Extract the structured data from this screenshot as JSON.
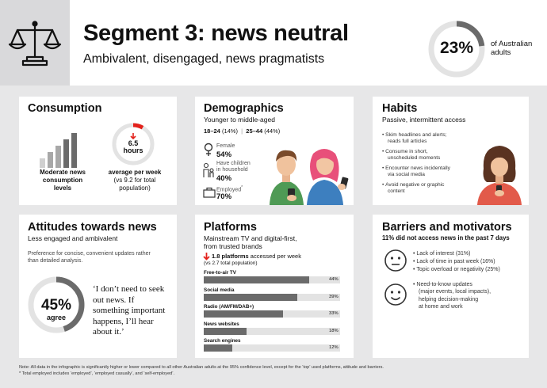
{
  "header": {
    "title": "Segment 3: news neutral",
    "subtitle": "Ambivalent, disengaged, news pragmatists",
    "share_value": "23%",
    "share_fraction": 0.23,
    "share_label_line1": "of Australian",
    "share_label_line2": "adults",
    "icon": "scales-icon"
  },
  "consumption": {
    "title": "Consumption",
    "level_label_line1": "Moderate news",
    "level_label_line2": "consumption",
    "level_label_line3": "levels",
    "hours_value": "6.5",
    "hours_unit": "hours",
    "hours_caption": "average per week",
    "hours_compare_line1": "(vs 9.2 for total",
    "hours_compare_line2": "population)"
  },
  "demographics": {
    "title": "Demographics",
    "subtitle": "Younger to middle-aged",
    "age1_label": "18–24",
    "age1_pct": "(14%)",
    "age2_label": "25–44",
    "age2_pct": "(44%)",
    "stats": [
      {
        "label": "Female",
        "value": "54%",
        "icon": "female-icon"
      },
      {
        "label_line1": "Have children",
        "label_line2": "in household",
        "value": "40%",
        "icon": "family-icon"
      },
      {
        "label": "Employed",
        "sup": "*",
        "value": "70%",
        "icon": "briefcase-icon"
      }
    ]
  },
  "habits": {
    "title": "Habits",
    "subtitle": "Passive, intermittent access",
    "items": [
      [
        "Skim headlines and alerts;",
        "reads full articles"
      ],
      [
        "Consume in short,",
        "unscheduled moments"
      ],
      [
        "Encounter news incidentally",
        "via social media"
      ],
      [
        "Avoid negative or graphic",
        "content"
      ]
    ]
  },
  "attitudes": {
    "title": "Attitudes towards news",
    "subtitle": "Less engaged and ambivalent",
    "description_line1": "Preference for concise, convenient updates rather",
    "description_line2": "than detailed analysis.",
    "agree_value": "45%",
    "agree_fraction": 0.45,
    "agree_label": "agree",
    "quote_lines": [
      "‘I don’t need to seek",
      "out news. If",
      "something important",
      "happens, I’ll hear",
      "about it.’"
    ]
  },
  "platforms": {
    "title": "Platforms",
    "subtitle_line1": "Mainstream TV and digital-first,",
    "subtitle_line2": "from trusted brands",
    "count_value": "1.8 platforms",
    "count_text": "accessed per week",
    "count_compare": "(vs 2.7 total population)",
    "items": [
      {
        "label": "Free-to-air TV",
        "value": 44,
        "value_label": "44%"
      },
      {
        "label": "Social media",
        "value": 39,
        "value_label": "39%"
      },
      {
        "label": "Radio (AM/FM/DAB+)",
        "value": 33,
        "value_label": "33%"
      },
      {
        "label": "News websites",
        "value": 18,
        "value_label": "18%"
      },
      {
        "label": "Search engines",
        "value": 12,
        "value_label": "12%"
      }
    ]
  },
  "barriers": {
    "title": "Barriers and motivators",
    "subtitle": "11% did not access news in the past 7 days",
    "barrier_items": [
      "Lack of interest (31%)",
      "Lack of time in past week (16%)",
      "Topic overload or negativity (25%)"
    ],
    "motivator_lines": [
      "Need-to-know updates",
      "(major events, local impacts),",
      "helping decision-making",
      "at home and work"
    ]
  },
  "footnote": {
    "line1": "Note: All data in the infographic is significantly higher or lower compared to all other Australian adults at the 95% confidence level, except for the ‘top’ used platforms, attitude and barriers.",
    "line2": "* Total employed includes ‘employed’, ‘employed casually’, and ‘self-employed’."
  },
  "colors": {
    "accent_red": "#e3211b",
    "dark_gray": "#6b6b6b",
    "mid_gray": "#a8a8a8",
    "light_gray": "#e3e3e3"
  }
}
